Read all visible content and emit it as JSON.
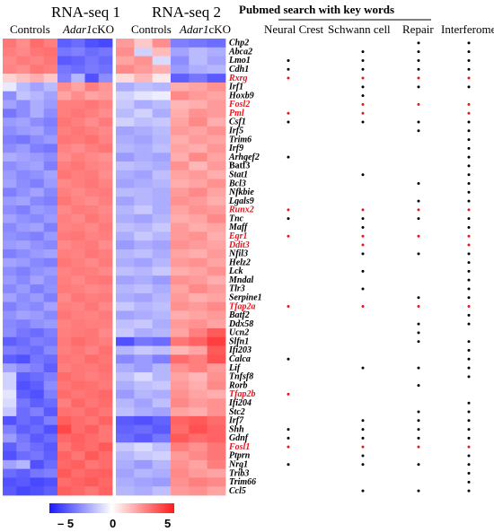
{
  "chart_data": {
    "type": "heatmap",
    "titles": {
      "rnaseq1": "RNA-seq 1",
      "rnaseq2": "RNA-seq 2",
      "pubmed": "Pubmed search with key words"
    },
    "group_labels": {
      "controls1": "Controls",
      "ko1_gene": "Adar1",
      "ko1_suffix": "cKO",
      "controls2": "Controls",
      "ko2_gene": "Adar1",
      "ko2_suffix": "cKO"
    },
    "columns": [
      "Neural Crest",
      "Schwann cell",
      "Repair",
      "Interferome"
    ],
    "colorbar": {
      "min_label": "– 5",
      "mid_label": "0",
      "max_label": "5",
      "min": -5,
      "max": 5,
      "colors": {
        "low": "#1a1aff",
        "mid": "#ffffff",
        "high": "#ff1a1a"
      }
    },
    "highlight_color": "#e8141c",
    "genes": [
      "Chp2",
      "Abca2",
      "Lmo1",
      "Cdh1",
      "Rxrg",
      "Irf1",
      "Hoxb9",
      "Fosl2",
      "Pml",
      "Csf1",
      "Irf5",
      "Trim6",
      "Irf9",
      "Arhgef2",
      "Batf3",
      "Stat1",
      "Bcl3",
      "Nfkbie",
      "Lgals9",
      "Runx2",
      "Tnc",
      "Maff",
      "Egr1",
      "Ddit3",
      "Nfil3",
      "Helz2",
      "Lck",
      "Mndal",
      "Tlr3",
      "Serpine1",
      "Tfap2a",
      "Batf2",
      "Ddx58",
      "Ucn2",
      "Slfn1",
      "Ifi203",
      "Calca",
      "Lif",
      "Tnfsf8",
      "Rorb",
      "Tfap2b",
      "Ifi204",
      "Stc2",
      "Irf7",
      "Shh",
      "Gdnf",
      "Fosl1",
      "Ptprn",
      "Nrg1",
      "Trib3",
      "Trim66",
      "Ccl5"
    ],
    "highlighted": [
      "Rxrg",
      "Fosl2",
      "Pml",
      "Runx2",
      "Egr1",
      "Ddit3",
      "Tfap2a",
      "Tfap2b",
      "Fosl1"
    ],
    "nonitalic": [
      "Batf3"
    ],
    "dots": [
      [
        0,
        0,
        1,
        1
      ],
      [
        0,
        1,
        1,
        1
      ],
      [
        1,
        1,
        1,
        1
      ],
      [
        1,
        1,
        1,
        1
      ],
      [
        1,
        1,
        1,
        1
      ],
      [
        0,
        1,
        1,
        1
      ],
      [
        0,
        1,
        0,
        0
      ],
      [
        0,
        1,
        1,
        1
      ],
      [
        1,
        1,
        0,
        1
      ],
      [
        1,
        1,
        1,
        1
      ],
      [
        0,
        0,
        1,
        1
      ],
      [
        0,
        0,
        0,
        1
      ],
      [
        0,
        0,
        0,
        1
      ],
      [
        1,
        0,
        0,
        1
      ],
      [
        0,
        0,
        0,
        1
      ],
      [
        0,
        1,
        0,
        1
      ],
      [
        0,
        0,
        1,
        1
      ],
      [
        0,
        0,
        0,
        1
      ],
      [
        0,
        0,
        1,
        1
      ],
      [
        1,
        1,
        1,
        1
      ],
      [
        1,
        1,
        1,
        1
      ],
      [
        0,
        1,
        0,
        1
      ],
      [
        1,
        1,
        1,
        1
      ],
      [
        0,
        1,
        0,
        1
      ],
      [
        0,
        1,
        1,
        1
      ],
      [
        0,
        0,
        0,
        1
      ],
      [
        0,
        1,
        0,
        1
      ],
      [
        0,
        0,
        0,
        1
      ],
      [
        0,
        1,
        0,
        1
      ],
      [
        0,
        0,
        1,
        1
      ],
      [
        1,
        1,
        1,
        1
      ],
      [
        0,
        0,
        0,
        1
      ],
      [
        0,
        0,
        1,
        1
      ],
      [
        0,
        0,
        1,
        0
      ],
      [
        0,
        0,
        1,
        1
      ],
      [
        0,
        0,
        0,
        1
      ],
      [
        1,
        0,
        0,
        1
      ],
      [
        0,
        1,
        1,
        1
      ],
      [
        0,
        0,
        0,
        1
      ],
      [
        0,
        0,
        1,
        0
      ],
      [
        1,
        0,
        0,
        0
      ],
      [
        0,
        0,
        0,
        1
      ],
      [
        0,
        0,
        1,
        1
      ],
      [
        0,
        1,
        1,
        1
      ],
      [
        1,
        1,
        1,
        1
      ],
      [
        1,
        1,
        1,
        1
      ],
      [
        1,
        1,
        1,
        1
      ],
      [
        0,
        1,
        0,
        1
      ],
      [
        1,
        1,
        1,
        1
      ],
      [
        0,
        0,
        0,
        1
      ],
      [
        0,
        0,
        0,
        1
      ],
      [
        0,
        1,
        1,
        1
      ]
    ],
    "rnaseq1_values": [
      [
        3.0,
        2.5,
        3.2,
        2.8,
        -3.5,
        -3.2,
        -3.8,
        -4.0
      ],
      [
        2.8,
        2.6,
        3.0,
        3.1,
        -3.0,
        -2.8,
        -3.2,
        -3.0
      ],
      [
        2.6,
        2.9,
        2.7,
        3.0,
        -3.6,
        -3.4,
        -3.0,
        -3.3
      ],
      [
        2.7,
        2.5,
        3.0,
        2.8,
        -3.0,
        -3.2,
        -2.9,
        -3.1
      ],
      [
        1.0,
        1.4,
        1.8,
        1.2,
        -2.8,
        -1.6,
        -3.8,
        -2.5
      ],
      [
        -0.5,
        -1.5,
        -2.0,
        -1.5,
        2.5,
        2.0,
        2.8,
        2.3
      ],
      [
        -2.5,
        -1.3,
        -1.6,
        -2.0,
        2.0,
        2.5,
        2.0,
        2.2
      ],
      [
        -2.0,
        -2.5,
        -1.8,
        -2.2,
        2.8,
        2.8,
        3.0,
        2.7
      ],
      [
        -3.0,
        -2.5,
        -1.8,
        -2.5,
        2.8,
        3.0,
        2.8,
        2.5
      ],
      [
        -2.2,
        -2.0,
        -2.5,
        -2.8,
        3.0,
        2.8,
        2.5,
        2.9
      ],
      [
        -2.5,
        -2.2,
        -2.0,
        -2.6,
        2.8,
        3.0,
        2.8,
        2.6
      ],
      [
        -2.8,
        -3.0,
        -2.5,
        -2.2,
        3.0,
        2.9,
        3.1,
        2.7
      ],
      [
        -2.5,
        -2.2,
        -2.8,
        -3.0,
        2.7,
        2.5,
        2.8,
        3.0
      ],
      [
        -1.8,
        -2.0,
        -2.2,
        -2.5,
        2.5,
        2.8,
        2.6,
        2.4
      ],
      [
        -2.5,
        -2.2,
        -2.0,
        -2.8,
        2.8,
        3.0,
        2.7,
        2.6
      ],
      [
        -2.2,
        -2.6,
        -2.4,
        -2.0,
        3.0,
        2.8,
        2.9,
        2.5
      ],
      [
        -2.0,
        -2.5,
        -2.8,
        -2.2,
        2.6,
        2.8,
        3.0,
        2.7
      ],
      [
        -2.8,
        -2.4,
        -2.0,
        -2.6,
        2.8,
        2.6,
        2.8,
        2.9
      ],
      [
        -2.2,
        -2.0,
        -2.6,
        -2.8,
        3.0,
        2.7,
        2.5,
        2.8
      ],
      [
        -2.5,
        -2.8,
        -2.2,
        -2.4,
        2.6,
        2.9,
        2.8,
        2.6
      ],
      [
        -2.0,
        -2.4,
        -2.6,
        -2.2,
        2.8,
        2.6,
        3.0,
        2.7
      ],
      [
        -2.6,
        -2.2,
        -2.0,
        -2.8,
        2.7,
        2.8,
        2.6,
        2.9
      ],
      [
        -2.4,
        -2.6,
        -2.8,
        -2.2,
        2.9,
        3.0,
        2.7,
        2.8
      ],
      [
        -2.2,
        -2.0,
        -2.4,
        -2.6,
        2.6,
        2.8,
        2.9,
        2.5
      ],
      [
        -2.8,
        -2.5,
        -2.2,
        -2.0,
        2.8,
        2.7,
        3.0,
        2.8
      ],
      [
        -2.0,
        -2.2,
        -2.6,
        -2.8,
        3.0,
        2.8,
        2.6,
        2.9
      ],
      [
        -2.5,
        -2.8,
        -2.4,
        -2.2,
        2.7,
        2.9,
        2.8,
        2.6
      ],
      [
        -2.2,
        -2.6,
        -2.0,
        -2.5,
        2.8,
        2.6,
        2.9,
        3.0
      ],
      [
        -2.6,
        -2.2,
        -2.8,
        -2.4,
        2.9,
        2.8,
        2.6,
        2.7
      ],
      [
        -2.0,
        -2.5,
        -2.2,
        -2.8,
        2.6,
        3.0,
        2.8,
        2.9
      ],
      [
        -2.8,
        -2.4,
        -2.6,
        -2.0,
        2.8,
        2.7,
        3.0,
        2.6
      ],
      [
        -2.4,
        -2.0,
        -2.2,
        -2.6,
        3.0,
        2.8,
        2.7,
        2.9
      ],
      [
        -2.6,
        -2.8,
        -2.4,
        -2.2,
        2.7,
        2.9,
        2.8,
        2.8
      ],
      [
        -2.5,
        -3.0,
        -3.2,
        -2.8,
        2.8,
        2.9,
        3.0,
        2.6
      ],
      [
        -3.5,
        -3.2,
        -2.8,
        -3.0,
        2.9,
        3.2,
        3.0,
        2.8
      ],
      [
        -2.8,
        -3.0,
        -3.2,
        -2.6,
        2.8,
        3.0,
        2.7,
        3.1
      ],
      [
        -3.5,
        -3.8,
        -3.0,
        -3.2,
        3.0,
        2.9,
        3.2,
        3.0
      ],
      [
        -2.0,
        -2.5,
        -2.8,
        -3.5,
        2.8,
        3.0,
        2.9,
        3.1
      ],
      [
        -1.0,
        -3.5,
        -3.2,
        -2.8,
        3.2,
        3.0,
        2.8,
        3.0
      ],
      [
        -1.0,
        -3.8,
        -3.5,
        -2.5,
        3.0,
        3.2,
        3.1,
        2.9
      ],
      [
        -0.6,
        -3.5,
        -3.8,
        -2.8,
        3.2,
        3.0,
        3.1,
        3.3
      ],
      [
        -0.8,
        -3.0,
        -3.5,
        -3.2,
        2.8,
        3.3,
        3.0,
        3.2
      ],
      [
        -1.2,
        -3.2,
        -2.8,
        -3.6,
        3.1,
        3.0,
        3.3,
        3.0
      ],
      [
        -3.8,
        -3.2,
        -3.5,
        -2.8,
        3.5,
        3.2,
        3.0,
        3.4
      ],
      [
        -2.8,
        -3.5,
        -3.2,
        -3.8,
        4.0,
        3.2,
        3.5,
        3.0
      ],
      [
        -2.2,
        -3.0,
        -3.6,
        -3.2,
        3.3,
        3.5,
        3.2,
        3.0
      ],
      [
        -3.5,
        -2.8,
        -3.2,
        -3.6,
        3.0,
        3.4,
        3.2,
        3.6
      ],
      [
        -3.8,
        -3.2,
        -3.0,
        -3.5,
        3.4,
        3.0,
        3.6,
        3.2
      ],
      [
        -2.0,
        -1.6,
        -3.8,
        -3.2,
        3.3,
        3.5,
        3.0,
        3.2
      ],
      [
        -3.2,
        -3.5,
        -3.0,
        -2.8,
        3.6,
        3.2,
        3.4,
        3.5
      ],
      [
        -3.8,
        -3.6,
        -4.0,
        -3.8,
        3.2,
        3.4,
        3.6,
        3.3
      ],
      [
        -3.6,
        -4.0,
        -3.8,
        -3.5,
        3.5,
        3.3,
        3.0,
        3.4
      ]
    ],
    "rnaseq2_values": [
      [
        2.2,
        1.2,
        2.5,
        -2.8,
        -3.0,
        -3.2
      ],
      [
        2.5,
        -1.0,
        1.5,
        -2.0,
        -1.5,
        -1.8
      ],
      [
        2.0,
        2.4,
        -0.8,
        -2.5,
        -1.5,
        -2.0
      ],
      [
        2.6,
        2.2,
        1.8,
        -2.2,
        -1.8,
        -1.6
      ],
      [
        0.8,
        1.6,
        0.5,
        -3.5,
        -3.0,
        -3.6
      ],
      [
        -1.8,
        -1.4,
        -1.6,
        1.8,
        2.0,
        2.4
      ],
      [
        -1.0,
        -0.6,
        -0.4,
        2.6,
        2.2,
        2.0
      ],
      [
        -1.2,
        -1.8,
        -1.5,
        1.6,
        1.8,
        2.2
      ],
      [
        -1.5,
        -1.0,
        -1.8,
        1.8,
        2.4,
        2.2
      ],
      [
        -1.0,
        -1.4,
        -1.2,
        2.0,
        2.6,
        1.8
      ],
      [
        -2.0,
        -1.8,
        -1.5,
        2.2,
        2.0,
        2.4
      ],
      [
        -1.8,
        -2.0,
        -1.6,
        1.8,
        2.2,
        2.0
      ],
      [
        -1.6,
        -1.8,
        -1.4,
        2.0,
        1.8,
        2.3
      ],
      [
        -2.2,
        -1.8,
        -2.0,
        1.8,
        2.6,
        2.0
      ],
      [
        -1.4,
        -1.6,
        -1.8,
        2.4,
        1.6,
        2.2
      ],
      [
        -1.8,
        -2.0,
        -1.4,
        2.0,
        2.2,
        1.8
      ],
      [
        -2.0,
        -1.8,
        -1.6,
        1.8,
        2.0,
        2.4
      ],
      [
        -1.5,
        -1.6,
        -1.8,
        2.2,
        2.6,
        2.0
      ],
      [
        -2.0,
        -1.6,
        -1.8,
        2.4,
        2.2,
        1.8
      ],
      [
        -1.6,
        -1.2,
        -1.8,
        2.0,
        2.4,
        2.2
      ],
      [
        -1.8,
        -2.0,
        -1.6,
        1.8,
        2.0,
        2.6
      ],
      [
        -1.4,
        -1.6,
        -1.2,
        2.2,
        1.8,
        2.0
      ],
      [
        -1.8,
        -1.2,
        -1.6,
        2.2,
        2.4,
        1.8
      ],
      [
        -2.2,
        -1.8,
        -2.0,
        2.4,
        2.2,
        2.0
      ],
      [
        -1.6,
        -1.4,
        -1.8,
        2.0,
        1.8,
        2.2
      ],
      [
        -1.8,
        -2.0,
        -1.6,
        2.2,
        2.4,
        2.0
      ],
      [
        -1.4,
        -1.6,
        -1.2,
        1.8,
        2.0,
        2.4
      ],
      [
        -2.0,
        -1.8,
        -2.2,
        2.4,
        2.2,
        1.8
      ],
      [
        -1.6,
        -1.4,
        -1.8,
        2.0,
        2.6,
        2.2
      ],
      [
        -1.8,
        -2.0,
        -1.6,
        2.2,
        1.8,
        2.0
      ],
      [
        -1.2,
        -1.6,
        -1.4,
        2.4,
        2.2,
        2.6
      ],
      [
        -2.0,
        -1.8,
        -1.6,
        1.8,
        2.0,
        2.2
      ],
      [
        -1.4,
        -1.2,
        -1.8,
        2.2,
        2.4,
        2.0
      ],
      [
        -1.2,
        -1.8,
        -1.6,
        2.0,
        2.8,
        3.6
      ],
      [
        -3.8,
        -3.0,
        -3.2,
        3.0,
        3.4,
        4.2
      ],
      [
        -1.6,
        -1.2,
        -1.4,
        1.6,
        2.0,
        3.6
      ],
      [
        -2.6,
        -2.2,
        -2.8,
        3.2,
        2.8,
        3.8
      ],
      [
        -1.8,
        -2.2,
        -1.6,
        2.4,
        2.8,
        2.2
      ],
      [
        -1.4,
        -0.8,
        -1.6,
        2.0,
        1.6,
        2.4
      ],
      [
        -1.8,
        -1.4,
        -1.2,
        2.2,
        1.8,
        2.6
      ],
      [
        -2.2,
        -1.6,
        -1.8,
        2.4,
        2.0,
        1.8
      ],
      [
        -1.6,
        -2.0,
        -1.4,
        2.6,
        2.2,
        2.4
      ],
      [
        -1.4,
        -1.8,
        -2.0,
        2.0,
        1.8,
        2.4
      ],
      [
        -3.6,
        -3.8,
        -3.4,
        3.4,
        3.6,
        3.2
      ],
      [
        -3.4,
        -3.2,
        -3.6,
        3.2,
        3.8,
        3.4
      ],
      [
        -3.2,
        -3.6,
        -3.0,
        3.6,
        3.2,
        3.4
      ],
      [
        -1.2,
        -0.8,
        -1.4,
        2.8,
        2.4,
        3.0
      ],
      [
        -1.6,
        -1.2,
        -1.0,
        2.2,
        2.6,
        3.0
      ],
      [
        -1.8,
        -2.2,
        -1.6,
        2.4,
        2.0,
        2.8
      ],
      [
        -2.0,
        -1.6,
        -1.8,
        2.6,
        2.2,
        2.0
      ],
      [
        -1.8,
        -2.0,
        -2.2,
        2.4,
        2.8,
        2.6
      ],
      [
        -1.6,
        -1.8,
        -1.4,
        2.2,
        2.4,
        2.0
      ]
    ]
  }
}
